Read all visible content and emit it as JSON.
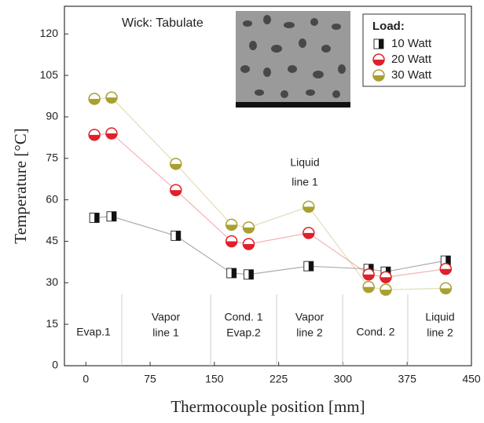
{
  "chart_data": {
    "type": "line",
    "annotation": "Wick: Tabulate",
    "x_label": "Thermocouple position [mm]",
    "y_label": "Temperature [°C]",
    "legend_title": "Load:",
    "legend_position": "upper right",
    "x": [
      10,
      30,
      105,
      170,
      190,
      260,
      330,
      350,
      420
    ],
    "series": [
      {
        "name": "10 Watt",
        "color": "#111111",
        "marker": "square",
        "values": [
          53.5,
          54,
          47,
          33.5,
          33,
          36,
          35,
          34,
          38
        ]
      },
      {
        "name": "20 Watt",
        "color": "#e0202a",
        "marker": "circle",
        "values": [
          83.5,
          84,
          63.5,
          45,
          44,
          48,
          33,
          32,
          35
        ]
      },
      {
        "name": "30 Watt",
        "color": "#a8a030",
        "marker": "circle",
        "values": [
          96.5,
          97,
          73,
          51,
          50,
          57.5,
          28.5,
          27.5,
          28
        ]
      }
    ],
    "regions": [
      [
        "Evap.1"
      ],
      [
        "Vapor",
        "line 1"
      ],
      [
        "Cond. 1",
        "Evap.2"
      ],
      [
        "Vapor",
        "line 2"
      ],
      [
        "Cond. 2"
      ],
      [
        "Liquid",
        "line 2"
      ]
    ],
    "region_note": [
      "Liquid",
      "line 1"
    ],
    "xlim": [
      -25,
      450
    ],
    "xticks": [
      0,
      75,
      150,
      225,
      300,
      375,
      450
    ],
    "ylim": [
      0,
      130
    ],
    "yticks": [
      0,
      15,
      30,
      45,
      60,
      75,
      90,
      105,
      120
    ]
  }
}
